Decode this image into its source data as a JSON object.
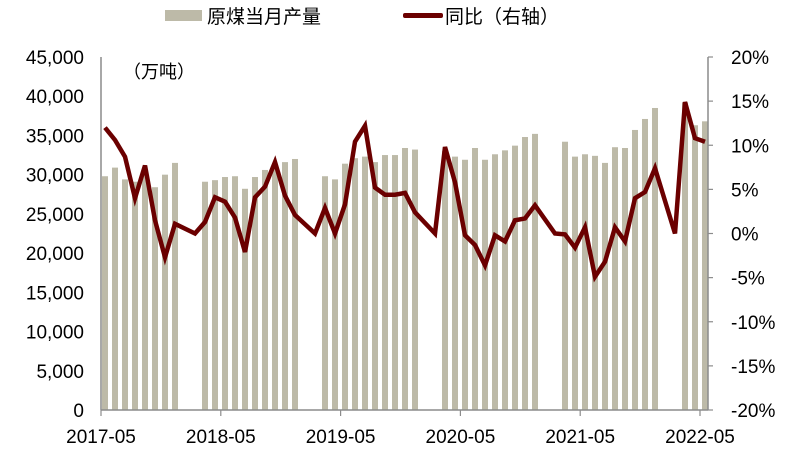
{
  "chart_data": {
    "type": "bar+line",
    "title": "",
    "legend": [
      {
        "label": "原煤当月产量",
        "type": "bar",
        "color": "#BDBAA8"
      },
      {
        "label": "同比（右轴）",
        "type": "line",
        "color": "#6B0000"
      }
    ],
    "legend_position": "top",
    "unit_label": "（万吨）",
    "grid": false,
    "left_axis": {
      "ylabel": "万吨",
      "ylim": [
        0,
        45000
      ],
      "ticks": [
        "0",
        "5,000",
        "10,000",
        "15,000",
        "20,000",
        "25,000",
        "30,000",
        "35,000",
        "40,000",
        "45,000"
      ]
    },
    "right_axis": {
      "ylabel": "同比",
      "ylim": [
        -20,
        20
      ],
      "ticks": [
        "-20%",
        "-15%",
        "-10%",
        "-5%",
        "0%",
        "5%",
        "10%",
        "15%",
        "20%"
      ]
    },
    "x_tick_labels": [
      "2017-05",
      "2018-05",
      "2019-05",
      "2020-05",
      "2021-05",
      "2022-05"
    ],
    "x_range": [
      "2017-05",
      "2022-05"
    ],
    "series": [
      {
        "name": "原煤当月产量",
        "type": "bar",
        "axis": "left",
        "x": [
          "2017-05",
          "2017-06",
          "2017-07",
          "2017-08",
          "2017-09",
          "2017-10",
          "2017-11",
          "2017-12",
          "2018-03",
          "2018-04",
          "2018-05",
          "2018-06",
          "2018-07",
          "2018-08",
          "2018-09",
          "2018-10",
          "2018-11",
          "2018-12",
          "2019-03",
          "2019-04",
          "2019-05",
          "2019-06",
          "2019-07",
          "2019-08",
          "2019-09",
          "2019-10",
          "2019-11",
          "2019-12",
          "2020-03",
          "2020-04",
          "2020-05",
          "2020-06",
          "2020-07",
          "2020-08",
          "2020-09",
          "2020-10",
          "2020-11",
          "2020-12",
          "2021-03",
          "2021-04",
          "2021-05",
          "2021-06",
          "2021-07",
          "2021-08",
          "2021-09",
          "2021-10",
          "2021-11",
          "2021-12",
          "2022-03",
          "2022-04",
          "2022-05"
        ],
        "values": [
          29800,
          30900,
          29400,
          29100,
          30000,
          28400,
          30000,
          31500,
          29100,
          29300,
          29700,
          29800,
          28200,
          29700,
          30600,
          31200,
          31600,
          32000,
          29800,
          29400,
          31400,
          32100,
          32300,
          31600,
          32500,
          32500,
          33400,
          33200,
          33000,
          32300,
          31900,
          33400,
          31900,
          32600,
          33100,
          33700,
          34800,
          35200,
          34200,
          32300,
          32600,
          32400,
          31500,
          33500,
          33400,
          35700,
          37100,
          38500,
          39200,
          36300,
          36800
        ]
      },
      {
        "name": "同比（右轴）",
        "type": "line",
        "axis": "right",
        "x": [
          "2017-05",
          "2017-06",
          "2017-07",
          "2017-08",
          "2017-09",
          "2017-10",
          "2017-11",
          "2017-12",
          "2018-02",
          "2018-03",
          "2018-04",
          "2018-05",
          "2018-06",
          "2018-07",
          "2018-08",
          "2018-09",
          "2018-10",
          "2018-11",
          "2018-12",
          "2019-02",
          "2019-03",
          "2019-04",
          "2019-05",
          "2019-06",
          "2019-07",
          "2019-08",
          "2019-09",
          "2019-10",
          "2019-11",
          "2019-12",
          "2020-02",
          "2020-03",
          "2020-04",
          "2020-05",
          "2020-06",
          "2020-07",
          "2020-08",
          "2020-09",
          "2020-10",
          "2020-11",
          "2020-12",
          "2021-02",
          "2021-03",
          "2021-04",
          "2021-05",
          "2021-06",
          "2021-07",
          "2021-08",
          "2021-09",
          "2021-10",
          "2021-11",
          "2021-12",
          "2022-02",
          "2022-03",
          "2022-04",
          "2022-05"
        ],
        "values": [
          12.0,
          10.6,
          8.7,
          4.0,
          7.7,
          1.5,
          -2.7,
          1.1,
          0.0,
          1.3,
          4.1,
          3.6,
          1.8,
          -2.1,
          4.1,
          5.3,
          8.1,
          4.3,
          2.1,
          0.0,
          2.9,
          0.0,
          3.3,
          10.4,
          12.2,
          5.2,
          4.4,
          4.4,
          4.6,
          2.4,
          0.0,
          9.8,
          5.8,
          -0.2,
          -1.3,
          -3.6,
          -0.2,
          -0.9,
          1.5,
          1.7,
          3.2,
          0.0,
          -0.1,
          -1.6,
          0.7,
          -4.9,
          -3.2,
          0.7,
          -0.9,
          4.0,
          4.7,
          7.4,
          0.0,
          14.9,
          10.8,
          10.4
        ]
      }
    ]
  }
}
